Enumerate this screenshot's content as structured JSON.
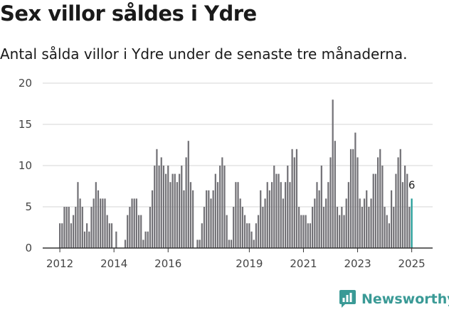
{
  "title": "Sex villor såldes i Ydre",
  "subtitle": "Antal sålda villor i Ydre under de senaste tre månaderna.",
  "brand": {
    "name": "Newsworthy",
    "color": "#3a9a96"
  },
  "colors": {
    "bar": "#717075",
    "highlight": "#1f9b96",
    "grid": "#d6d6d6",
    "axis": "#333333"
  },
  "chart_data": {
    "type": "bar",
    "title": "Sex villor såldes i Ydre",
    "subtitle": "Antal sålda villor i Ydre under de senaste tre månaderna.",
    "x_ticks": [
      "2012",
      "2014",
      "2016",
      "2019",
      "2021",
      "2023",
      "2025"
    ],
    "x_tick_positions": [
      2012,
      2014,
      2016,
      2019,
      2021,
      2023,
      2025
    ],
    "ylim": [
      0,
      20
    ],
    "y_ticks": [
      0,
      5,
      10,
      15,
      20
    ],
    "grid": true,
    "x_start": 2012,
    "months_per_bar": 1,
    "values": [
      3,
      3,
      5,
      5,
      5,
      3,
      4,
      5,
      8,
      6,
      5,
      2,
      3,
      2,
      5,
      6,
      8,
      7,
      6,
      6,
      6,
      4,
      3,
      3,
      0,
      2,
      0,
      0,
      0,
      1,
      4,
      5,
      6,
      6,
      6,
      4,
      4,
      1,
      2,
      2,
      5,
      7,
      10,
      12,
      10,
      11,
      10,
      9,
      10,
      8,
      9,
      9,
      8,
      9,
      10,
      7,
      11,
      13,
      8,
      7,
      0,
      1,
      1,
      3,
      5,
      7,
      7,
      6,
      7,
      9,
      8,
      10,
      11,
      10,
      4,
      1,
      1,
      5,
      8,
      8,
      6,
      5,
      4,
      3,
      3,
      2,
      1,
      3,
      4,
      7,
      5,
      6,
      8,
      7,
      8,
      10,
      9,
      9,
      8,
      6,
      8,
      10,
      8,
      12,
      11,
      12,
      5,
      4,
      4,
      4,
      3,
      3,
      5,
      6,
      8,
      7,
      10,
      5,
      6,
      8,
      11,
      18,
      13,
      5,
      4,
      5,
      4,
      6,
      8,
      12,
      12,
      14,
      11,
      6,
      5,
      6,
      7,
      5,
      6,
      9,
      9,
      11,
      12,
      10,
      5,
      4,
      3,
      7,
      5,
      9,
      11,
      12,
      8,
      10,
      9,
      5,
      6
    ],
    "highlight": {
      "index": 156,
      "label": "6"
    }
  }
}
